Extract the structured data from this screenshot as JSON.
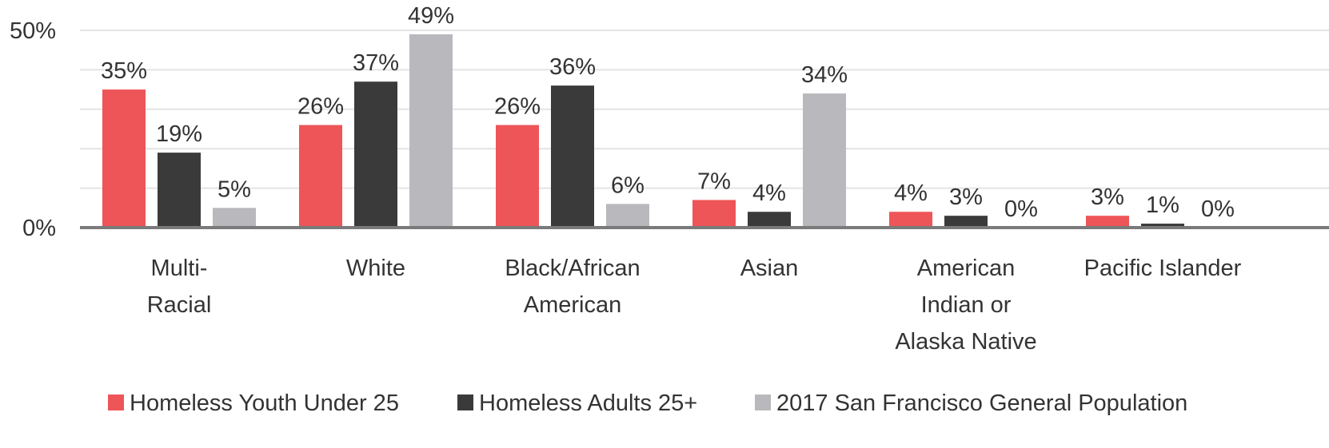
{
  "chart_data": {
    "type": "bar",
    "title": "",
    "xlabel": "",
    "ylabel": "",
    "ylim": [
      0,
      50
    ],
    "y_ticks": [
      {
        "value": 50,
        "label": "50%"
      },
      {
        "value": 0,
        "label": "0%"
      }
    ],
    "grid": true,
    "legend_position": "bottom",
    "categories": [
      {
        "lines": [
          "Multi-",
          "Racial"
        ]
      },
      {
        "lines": [
          "White"
        ]
      },
      {
        "lines": [
          "Black/African",
          "American"
        ]
      },
      {
        "lines": [
          "Asian"
        ]
      },
      {
        "lines": [
          "American",
          "Indian or",
          "Alaska Native"
        ]
      },
      {
        "lines": [
          "Pacific Islander"
        ]
      }
    ],
    "series": [
      {
        "name": "Homeless Youth Under 25",
        "color": "#ee5558",
        "values": [
          35,
          26,
          26,
          7,
          4,
          3
        ],
        "labels": [
          "35%",
          "26%",
          "26%",
          "7%",
          "4%",
          "3%"
        ]
      },
      {
        "name": "Homeless Adults 25+",
        "color": "#3a3a3a",
        "values": [
          19,
          37,
          36,
          4,
          3,
          1
        ],
        "labels": [
          "19%",
          "37%",
          "36%",
          "4%",
          "3%",
          "1%"
        ]
      },
      {
        "name": "2017 San Francisco General Population",
        "color": "#b9b9bd",
        "values": [
          5,
          49,
          6,
          34,
          0,
          0
        ],
        "labels": [
          "5%",
          "49%",
          "6%",
          "34%",
          "0%",
          "0%"
        ]
      }
    ]
  }
}
